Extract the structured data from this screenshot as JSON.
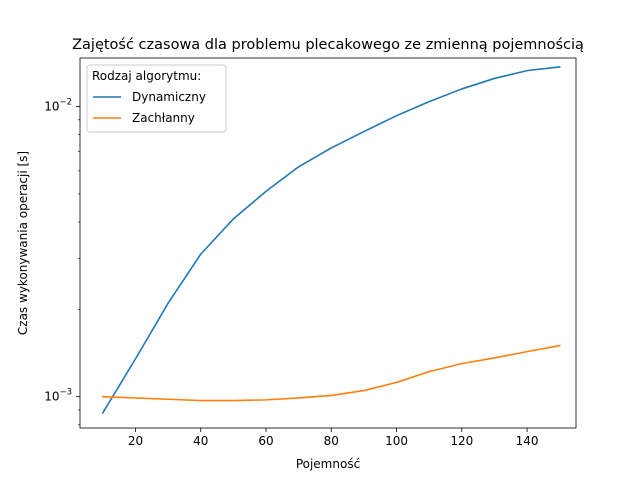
{
  "chart_data": {
    "type": "line",
    "title": "Zajętość czasowa dla problemu plecakowego ze zmienną pojemnością",
    "xlabel": "Pojemność",
    "ylabel": "Czas wykonywania operacji [s]",
    "yscale": "log",
    "xlim": [
      3,
      155
    ],
    "ylim": [
      0.00078,
      0.0147
    ],
    "xticks": [
      20,
      40,
      60,
      80,
      100,
      120,
      140
    ],
    "xtick_labels": [
      "20",
      "40",
      "60",
      "80",
      "100",
      "120",
      "140"
    ],
    "yticks": [
      0.001,
      0.01
    ],
    "ytick_labels": [
      {
        "base": "10",
        "exp": "−3"
      },
      {
        "base": "10",
        "exp": "−2"
      }
    ],
    "grid": false,
    "legend": {
      "title": "Rodzaj algorytmu:",
      "placement": "top-left"
    },
    "x": [
      10,
      20,
      30,
      40,
      50,
      60,
      70,
      80,
      90,
      100,
      110,
      120,
      130,
      140,
      150
    ],
    "series": [
      {
        "name": "Dynamiczny",
        "color": "#1f77b4",
        "values": [
          0.00088,
          0.00135,
          0.0021,
          0.0031,
          0.0041,
          0.0051,
          0.0062,
          0.0072,
          0.0082,
          0.0093,
          0.0104,
          0.0115,
          0.0125,
          0.0133,
          0.0137
        ]
      },
      {
        "name": "Zachłanny",
        "color": "#ff7f0e",
        "values": [
          0.001,
          0.00099,
          0.00098,
          0.00097,
          0.00097,
          0.000975,
          0.00099,
          0.00101,
          0.00105,
          0.00112,
          0.00122,
          0.0013,
          0.00136,
          0.00143,
          0.0015
        ]
      }
    ]
  }
}
